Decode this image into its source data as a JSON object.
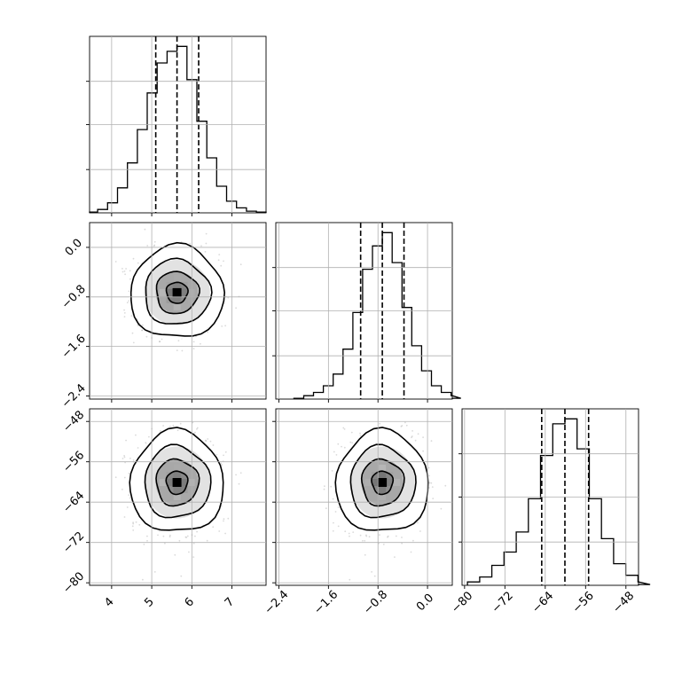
{
  "chart_data": {
    "type": "corner",
    "parameters": [
      {
        "range": [
          3.45,
          7.85
        ],
        "tick_labels": [
          "4",
          "5",
          "6",
          "7"
        ],
        "tick_values": [
          4,
          5,
          6,
          7
        ],
        "quantiles": [
          5.1,
          5.63,
          6.17
        ],
        "mean": 5.63,
        "sd": 0.53,
        "hist_counts": [
          0.005,
          0.02,
          0.06,
          0.15,
          0.3,
          0.5,
          0.72,
          0.9,
          0.97,
          1.0,
          0.8,
          0.55,
          0.33,
          0.16,
          0.07,
          0.03,
          0.01,
          0.005
        ]
      },
      {
        "range": [
          -2.45,
          0.4
        ],
        "tick_labels": [
          "−2.4",
          "−1.6",
          "−0.8",
          "0.0"
        ],
        "tick_values": [
          -2.4,
          -1.6,
          -0.8,
          0.0
        ],
        "quantiles": [
          -1.08,
          -0.73,
          -0.38
        ],
        "mean": -0.73,
        "sd": 0.34,
        "hist_counts": [
          0.005,
          0.02,
          0.04,
          0.08,
          0.15,
          0.3,
          0.52,
          0.78,
          0.92,
          1.0,
          0.82,
          0.55,
          0.32,
          0.17,
          0.08,
          0.04,
          0.02,
          0.005
        ]
      },
      {
        "range": [
          -80.5,
          -45.5
        ],
        "tick_labels": [
          "−80",
          "−72",
          "−64",
          "−56",
          "−48"
        ],
        "tick_values": [
          -80,
          -72,
          -64,
          -56,
          -48
        ],
        "quantiles": [
          -64.7,
          -60.1,
          -55.4
        ],
        "mean": -60.1,
        "sd": 4.6,
        "hist_counts": [
          0.02,
          0.05,
          0.12,
          0.2,
          0.32,
          0.52,
          0.78,
          0.97,
          1.0,
          0.82,
          0.52,
          0.28,
          0.13,
          0.06,
          0.02,
          0.005
        ]
      }
    ],
    "hist_ylim": [
      0,
      1.06
    ],
    "n_scatter_points": 900,
    "grid": true
  }
}
